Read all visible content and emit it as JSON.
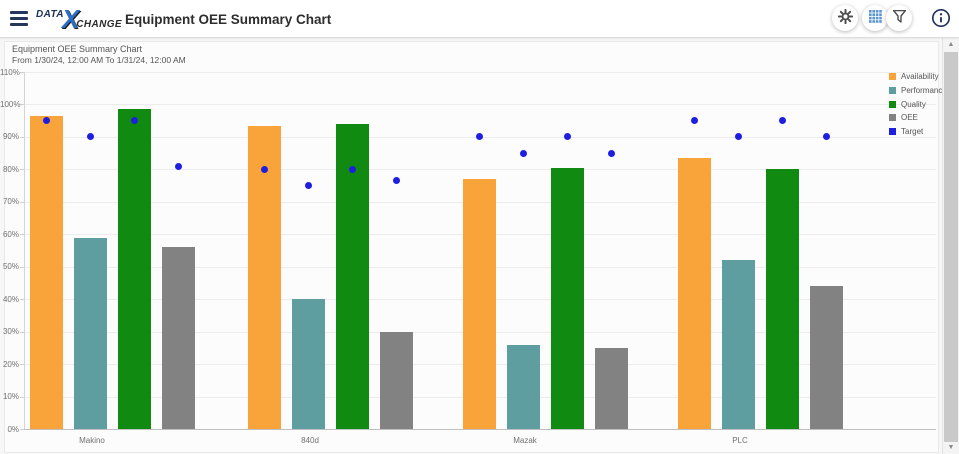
{
  "header": {
    "logo": {
      "part1": "DATA",
      "part2": "X",
      "part3": "CHANGE"
    },
    "title": "Equipment OEE Summary Chart"
  },
  "toolbar": {
    "icons": [
      "settings",
      "grid",
      "filter",
      "info"
    ]
  },
  "chart_data": {
    "type": "bar",
    "title": "Equipment OEE Summary Chart",
    "subtitle": "From 1/30/24, 12:00 AM To 1/31/24, 12:00 AM",
    "categories": [
      "Makino",
      "840d",
      "Mazak",
      "PLC"
    ],
    "series": [
      {
        "name": "Availability",
        "type": "bar",
        "color": "#f9a43b",
        "values": [
          96.5,
          93.5,
          77,
          83.5
        ]
      },
      {
        "name": "Performance",
        "type": "bar",
        "color": "#5f9ea0",
        "values": [
          59,
          40,
          26,
          52
        ]
      },
      {
        "name": "Quality",
        "type": "bar",
        "color": "#118a11",
        "values": [
          98.5,
          94,
          80.5,
          80
        ]
      },
      {
        "name": "OEE",
        "type": "bar",
        "color": "#828282",
        "values": [
          56,
          30,
          25,
          44
        ]
      },
      {
        "name": "Target",
        "type": "point",
        "color": "#1e1ee0",
        "values_by_category": [
          [
            95,
            90,
            95,
            81
          ],
          [
            80,
            75,
            80,
            76.5
          ],
          [
            90,
            85,
            90,
            85
          ],
          [
            95,
            90,
            95,
            90
          ]
        ]
      }
    ],
    "y_axis": {
      "min": 0,
      "max": 110,
      "step": 10,
      "unit": "%",
      "tick_labels": [
        "0%",
        "10%",
        "20%",
        "30%",
        "40%",
        "50%",
        "60%",
        "70%",
        "80%",
        "90%",
        "100%",
        "110%"
      ]
    },
    "grid": true,
    "legend_position": "right"
  }
}
